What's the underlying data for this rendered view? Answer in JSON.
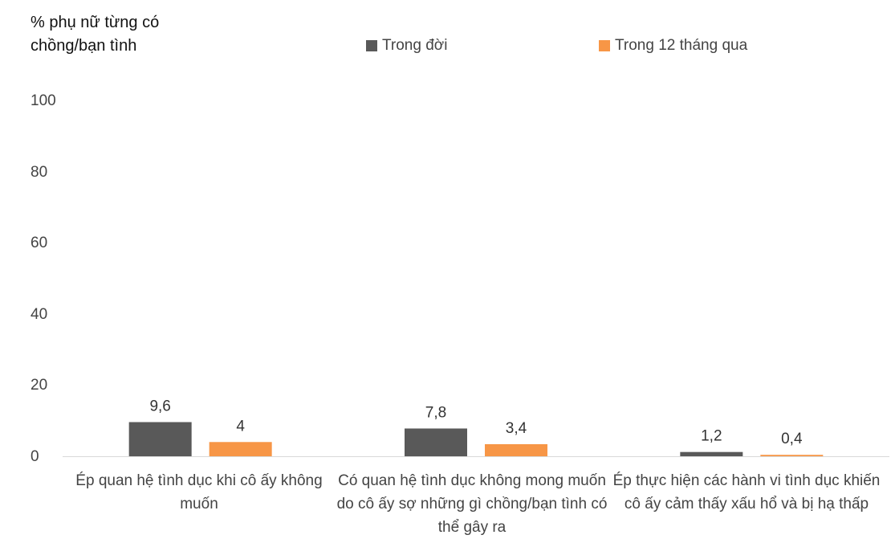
{
  "chart_data": {
    "type": "bar",
    "ylabel": "% phụ nữ từng có\nchồng/bạn tình",
    "ylim": [
      0,
      100
    ],
    "yticks": [
      "100",
      "80",
      "60",
      "40",
      "20",
      "0"
    ],
    "grid": false,
    "legend_position": "top",
    "categories": [
      "Ép quan hệ tình dục khi cô ấy không muốn",
      "Có quan hệ tình dục không mong muốn do cô ấy sợ những gì chồng/bạn tình có thể gây ra",
      "Ép thực hiện các hành vi tình dục khiến cô ấy  cảm thấy xấu hổ và bị hạ thấp"
    ],
    "series": [
      {
        "name": "Trong đời",
        "color": "#595959",
        "values": [
          9.6,
          7.8,
          1.2
        ],
        "labels": [
          "9,6",
          "7,8",
          "1,2"
        ]
      },
      {
        "name": "Trong 12 tháng qua",
        "color": "#f79646",
        "values": [
          4,
          3.4,
          0.4
        ],
        "labels": [
          "4",
          "3,4",
          "0,4"
        ]
      }
    ]
  }
}
